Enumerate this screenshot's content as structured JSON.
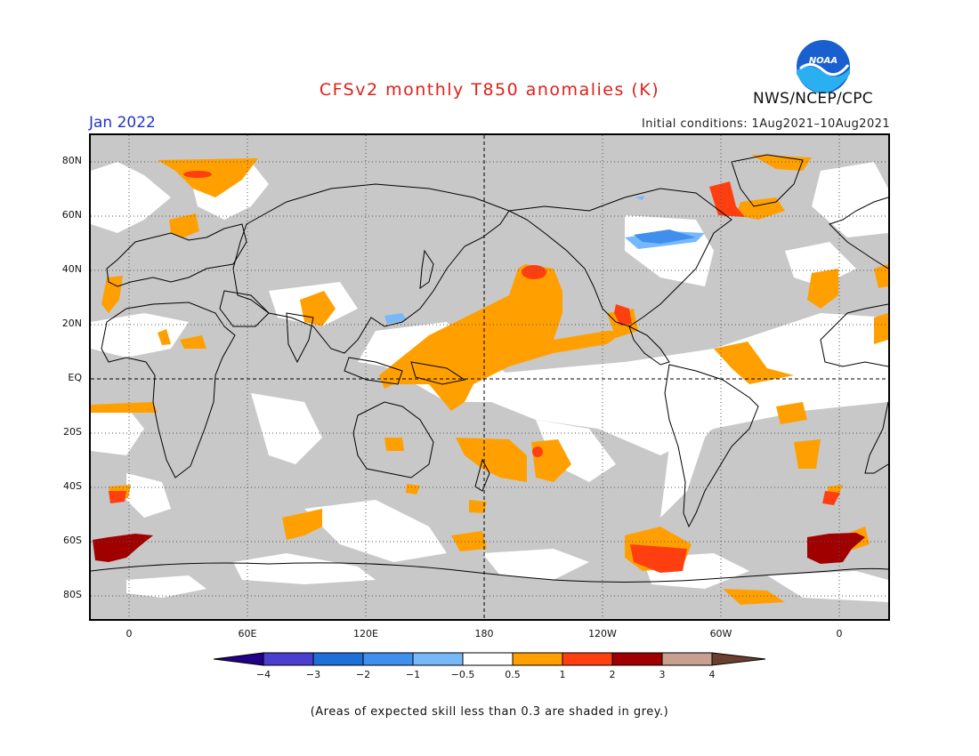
{
  "title": "CFSv2 monthly T850 anomalies (K)",
  "valid_month": "Jan 2022",
  "initial_conditions": "Initial conditions: 1Aug2021–10Aug2021",
  "agency": "NWS/NCEP/CPC",
  "logo_text": "NOAA",
  "footnote": "(Areas of expected skill less than 0.3 are shaded in grey.)",
  "map": {
    "lat_labels": [
      "80N",
      "60N",
      "40N",
      "20N",
      "EQ",
      "20S",
      "40S",
      "60S",
      "80S"
    ],
    "lon_labels": [
      "0",
      "60E",
      "120E",
      "180",
      "120W",
      "60W",
      "0"
    ],
    "colors": {
      "no_skill": "#c8c8c8",
      "near_normal": "#ffffff",
      "pos_0.5_1": "#ffa000",
      "pos_1_2": "#ff3f10",
      "pos_2_3": "#a00000",
      "neg_0.5_1": "#77b8f8",
      "neg_1_2": "#3f8fef"
    }
  },
  "colorbar": {
    "ticks": [
      "−4",
      "−3",
      "−2",
      "−1",
      "−0.5",
      "0.5",
      "1",
      "2",
      "3",
      "4"
    ],
    "colors": [
      "#220088",
      "#4a3fcf",
      "#1e6fd8",
      "#3f8fef",
      "#77b8f8",
      "#ffffff",
      "#ffa000",
      "#ff3f10",
      "#a00000",
      "#c8a090",
      "#6b3f30"
    ]
  }
}
